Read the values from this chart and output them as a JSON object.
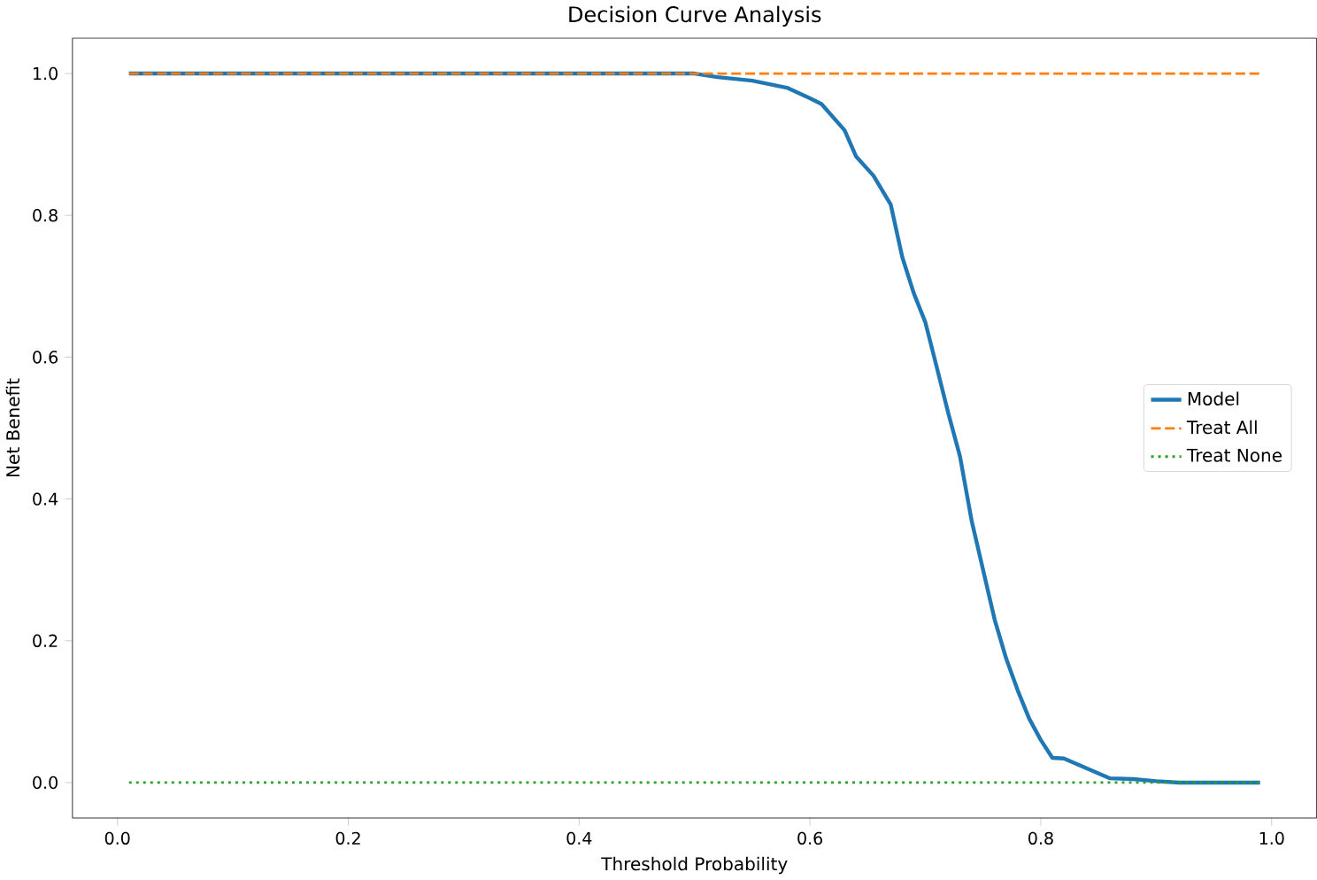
{
  "chart_data": {
    "type": "line",
    "title": "Decision Curve Analysis",
    "xlabel": "Threshold Probability",
    "ylabel": "Net Benefit",
    "xlim": [
      -0.039,
      1.039
    ],
    "ylim": [
      -0.05,
      1.05
    ],
    "xticks": [
      {
        "value": 0,
        "label": "0.0"
      },
      {
        "value": 0.2,
        "label": "0.2"
      },
      {
        "value": 0.4,
        "label": "0.4"
      },
      {
        "value": 0.6,
        "label": "0.6"
      },
      {
        "value": 0.8,
        "label": "0.8"
      },
      {
        "value": 1,
        "label": "1.0"
      }
    ],
    "yticks": [
      {
        "value": 0,
        "label": "0.0"
      },
      {
        "value": 0.2,
        "label": "0.2"
      },
      {
        "value": 0.4,
        "label": "0.4"
      },
      {
        "value": 0.6,
        "label": "0.6"
      },
      {
        "value": 0.8,
        "label": "0.8"
      },
      {
        "value": 1,
        "label": "1.0"
      }
    ],
    "legend": "right",
    "grid": false,
    "series": [
      {
        "name": "Model",
        "color": "#1f77b4",
        "line_style": "solid",
        "x": [
          0.01,
          0.1,
          0.2,
          0.3,
          0.4,
          0.5,
          0.52,
          0.55,
          0.58,
          0.6,
          0.61,
          0.63,
          0.64,
          0.655,
          0.67,
          0.68,
          0.69,
          0.7,
          0.71,
          0.72,
          0.73,
          0.74,
          0.75,
          0.76,
          0.77,
          0.78,
          0.79,
          0.8,
          0.81,
          0.82,
          0.84,
          0.86,
          0.88,
          0.9,
          0.92,
          0.95,
          0.99
        ],
        "values": [
          1.0,
          1.0,
          1.0,
          1.0,
          1.0,
          1.0,
          0.995,
          0.99,
          0.98,
          0.965,
          0.957,
          0.92,
          0.883,
          0.856,
          0.815,
          0.741,
          0.69,
          0.649,
          0.585,
          0.52,
          0.46,
          0.37,
          0.3,
          0.23,
          0.175,
          0.13,
          0.09,
          0.06,
          0.035,
          0.034,
          0.02,
          0.006,
          0.005,
          0.002,
          0.0,
          0.0,
          0.0
        ]
      },
      {
        "name": "Treat All",
        "color": "#ff7f0e",
        "line_style": "dashed",
        "x": [
          0.01,
          0.99
        ],
        "values": [
          1.0,
          1.0
        ]
      },
      {
        "name": "Treat None",
        "color": "#2ca02c",
        "line_style": "dotted",
        "x": [
          0.01,
          0.99
        ],
        "values": [
          0.0,
          0.0
        ]
      }
    ]
  }
}
